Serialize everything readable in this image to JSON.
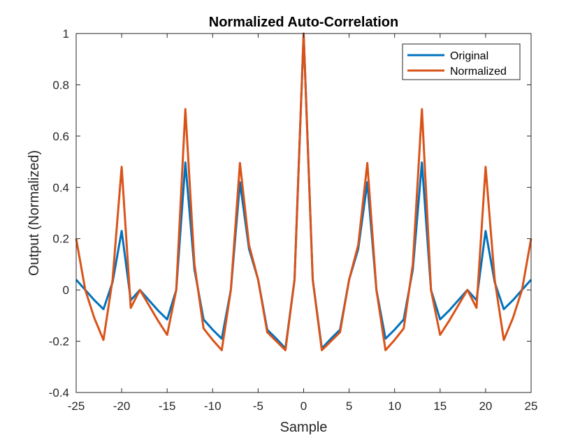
{
  "chart_data": {
    "type": "line",
    "title": "Normalized Auto-Correlation",
    "xlabel": "Sample",
    "ylabel": "Output (Normalized)",
    "xlim": [
      -25,
      25
    ],
    "ylim": [
      -0.4,
      1
    ],
    "xticks": [
      -25,
      -20,
      -15,
      -10,
      -5,
      0,
      5,
      10,
      15,
      20,
      25
    ],
    "yticks": [
      -0.4,
      -0.2,
      0,
      0.2,
      0.4,
      0.6,
      0.8,
      1
    ],
    "xtick_labels": [
      "-25",
      "-20",
      "-15",
      "-10",
      "-5",
      "0",
      "5",
      "10",
      "15",
      "20",
      "25"
    ],
    "ytick_labels": [
      "-0.4",
      "-0.2",
      "0",
      "0.2",
      "0.4",
      "0.6",
      "0.8",
      "1"
    ],
    "grid": false,
    "legend": {
      "position": "top-right"
    },
    "x": [
      -25,
      -24,
      -23,
      -22,
      -21,
      -20,
      -19,
      -18,
      -17,
      -16,
      -15,
      -14,
      -13,
      -12,
      -11,
      -10,
      -9,
      -8,
      -7,
      -6,
      -5,
      -4,
      -3,
      -2,
      -1,
      0,
      1,
      2,
      3,
      4,
      5,
      6,
      7,
      8,
      9,
      10,
      11,
      12,
      13,
      14,
      15,
      16,
      17,
      18,
      19,
      20,
      21,
      22,
      23,
      24,
      25
    ],
    "series": [
      {
        "name": "Original",
        "color": "#0072BD",
        "values": [
          0.04,
          0.0,
          -0.04,
          -0.075,
          0.03,
          0.23,
          -0.04,
          0.0,
          -0.04,
          -0.08,
          -0.115,
          0.0,
          0.497,
          0.08,
          -0.115,
          -0.155,
          -0.19,
          0.0,
          0.42,
          0.16,
          0.04,
          -0.155,
          -0.19,
          -0.228,
          0.04,
          1.0,
          0.04,
          -0.228,
          -0.19,
          -0.155,
          0.04,
          0.16,
          0.42,
          0.0,
          -0.19,
          -0.155,
          -0.115,
          0.08,
          0.497,
          0.0,
          -0.115,
          -0.08,
          -0.04,
          0.0,
          -0.04,
          0.23,
          0.03,
          -0.075,
          -0.04,
          0.0,
          0.04
        ]
      },
      {
        "name": "Normalized",
        "color": "#D95319",
        "values": [
          0.2,
          0.0,
          -0.11,
          -0.195,
          0.04,
          0.48,
          -0.07,
          0.0,
          -0.06,
          -0.12,
          -0.175,
          0.0,
          0.705,
          0.1,
          -0.15,
          -0.195,
          -0.235,
          0.0,
          0.495,
          0.175,
          0.04,
          -0.165,
          -0.2,
          -0.235,
          0.04,
          1.0,
          0.04,
          -0.235,
          -0.2,
          -0.165,
          0.04,
          0.175,
          0.495,
          0.0,
          -0.235,
          -0.195,
          -0.15,
          0.1,
          0.705,
          0.0,
          -0.175,
          -0.12,
          -0.06,
          0.0,
          -0.07,
          0.48,
          0.04,
          -0.195,
          -0.11,
          0.0,
          0.2
        ]
      }
    ]
  }
}
